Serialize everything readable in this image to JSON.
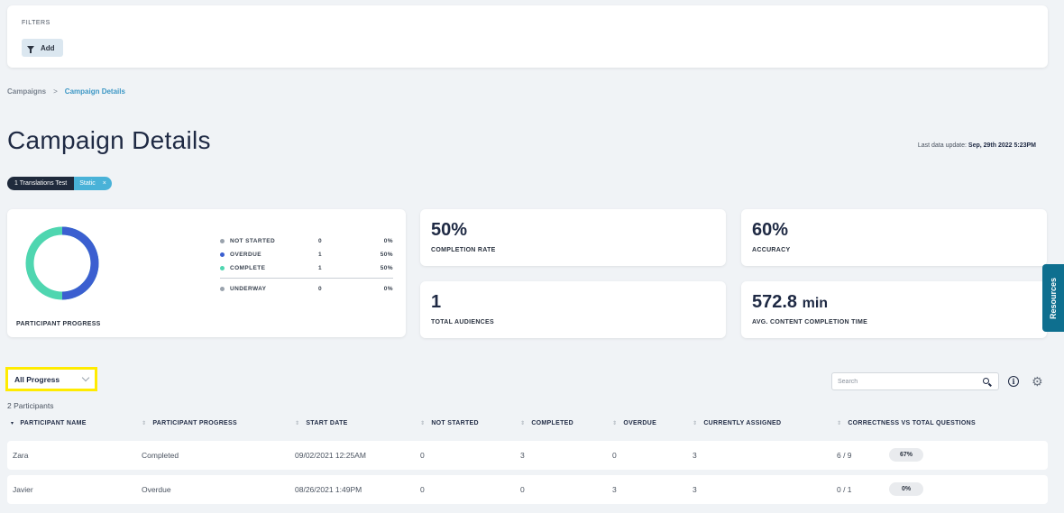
{
  "filters": {
    "label": "FILTERS",
    "add_label": "Add"
  },
  "breadcrumb": {
    "parent": "Campaigns",
    "separator": ">",
    "current": "Campaign Details"
  },
  "page_title": "Campaign Details",
  "last_update": {
    "label": "Last data update:",
    "value": "Sep, 29th 2022 5:23PM"
  },
  "chips": {
    "campaign": "1 Translations Test",
    "type": "Static",
    "remove": "×"
  },
  "progress": {
    "label": "PARTICIPANT PROGRESS",
    "legend": [
      {
        "name": "NOT STARTED",
        "count": "0",
        "pct": "0%",
        "color": "#9aa3ad"
      },
      {
        "name": "OVERDUE",
        "count": "1",
        "pct": "50%",
        "color": "#3b5fd0"
      },
      {
        "name": "COMPLETE",
        "count": "1",
        "pct": "50%",
        "color": "#4fd6b0"
      },
      {
        "name": "UNDERWAY",
        "count": "0",
        "pct": "0%",
        "color": "#9aa3ad"
      }
    ]
  },
  "stats": {
    "completion": {
      "value": "50%",
      "label": "COMPLETION RATE"
    },
    "accuracy": {
      "value": "60%",
      "label": "ACCURACY"
    },
    "audiences": {
      "value": "1",
      "label": "TOTAL AUDIENCES"
    },
    "avg_time": {
      "value": "572.8",
      "unit": "min",
      "label": "AVG. CONTENT COMPLETION TIME"
    }
  },
  "resources_label": "Resources",
  "toolbar": {
    "progress_select": "All Progress",
    "search_placeholder": "Search",
    "info_glyph": "i",
    "gear_glyph": "⚙"
  },
  "participant_count": "2 Participants",
  "table": {
    "headers": [
      "PARTICIPANT NAME",
      "PARTICIPANT PROGRESS",
      "START DATE",
      "NOT STARTED",
      "COMPLETED",
      "OVERDUE",
      "CURRENTLY ASSIGNED",
      "CORRECTNESS VS TOTAL QUESTIONS"
    ],
    "rows": [
      {
        "name": "Zara",
        "progress": "Completed",
        "start": "09/02/2021 12:25AM",
        "not_started": "0",
        "completed": "3",
        "overdue": "0",
        "assigned": "3",
        "correctness": "6 / 9",
        "pct": "67%"
      },
      {
        "name": "Javier",
        "progress": "Overdue",
        "start": "08/26/2021 1:49PM",
        "not_started": "0",
        "completed": "0",
        "overdue": "3",
        "assigned": "3",
        "correctness": "0 / 1",
        "pct": "0%"
      }
    ]
  }
}
